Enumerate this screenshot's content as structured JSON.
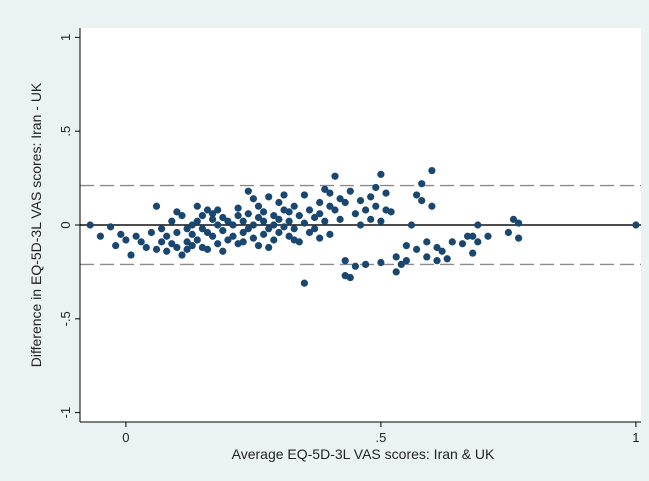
{
  "chart_data": {
    "type": "scatter",
    "xlabel": "Average EQ-5D-3L VAS scores: Iran & UK",
    "ylabel": "Difference in EQ-5D-3L VAS scores: Iran - UK",
    "xlim": [
      -0.09,
      1.01
    ],
    "ylim": [
      -1.05,
      1.05
    ],
    "x_ticks": [
      {
        "value": 0,
        "label": "0"
      },
      {
        "value": 0.5,
        "label": ".5"
      },
      {
        "value": 1,
        "label": "1"
      }
    ],
    "y_ticks": [
      {
        "value": 1,
        "label": "1"
      },
      {
        "value": 0.5,
        "label": ".5"
      },
      {
        "value": 0,
        "label": "0"
      },
      {
        "value": -0.5,
        "label": "-.5"
      },
      {
        "value": -1,
        "label": "-1"
      }
    ],
    "reference_lines": [
      {
        "y": 0,
        "style": "solid"
      },
      {
        "y": 0.21,
        "style": "dashed"
      },
      {
        "y": -0.21,
        "style": "dashed"
      }
    ],
    "grid": false,
    "point_color": "#1a476f",
    "points": [
      [
        -0.07,
        0.0
      ],
      [
        -0.05,
        -0.06
      ],
      [
        -0.03,
        -0.01
      ],
      [
        -0.02,
        -0.11
      ],
      [
        -0.01,
        -0.05
      ],
      [
        0.0,
        -0.08
      ],
      [
        0.01,
        -0.16
      ],
      [
        0.02,
        -0.06
      ],
      [
        0.03,
        -0.09
      ],
      [
        0.04,
        -0.12
      ],
      [
        0.05,
        -0.04
      ],
      [
        0.06,
        -0.13
      ],
      [
        0.06,
        0.1
      ],
      [
        0.07,
        -0.02
      ],
      [
        0.07,
        -0.09
      ],
      [
        0.08,
        -0.14
      ],
      [
        0.08,
        -0.06
      ],
      [
        0.09,
        -0.1
      ],
      [
        0.09,
        0.02
      ],
      [
        0.1,
        0.07
      ],
      [
        0.1,
        -0.04
      ],
      [
        0.1,
        -0.12
      ],
      [
        0.11,
        0.05
      ],
      [
        0.11,
        -0.16
      ],
      [
        0.12,
        -0.02
      ],
      [
        0.12,
        -0.09
      ],
      [
        0.12,
        -0.13
      ],
      [
        0.13,
        0.0
      ],
      [
        0.13,
        -0.05
      ],
      [
        0.13,
        -0.11
      ],
      [
        0.14,
        0.02
      ],
      [
        0.14,
        0.1
      ],
      [
        0.14,
        -0.08
      ],
      [
        0.15,
        0.05
      ],
      [
        0.15,
        -0.02
      ],
      [
        0.15,
        -0.12
      ],
      [
        0.16,
        0.08
      ],
      [
        0.16,
        -0.04
      ],
      [
        0.16,
        -0.13
      ],
      [
        0.17,
        0.03
      ],
      [
        0.17,
        0.06
      ],
      [
        0.17,
        -0.06
      ],
      [
        0.18,
        0.0
      ],
      [
        0.18,
        -0.1
      ],
      [
        0.18,
        0.08
      ],
      [
        0.19,
        -0.14
      ],
      [
        0.19,
        0.04
      ],
      [
        0.19,
        -0.03
      ],
      [
        0.2,
        0.02
      ],
      [
        0.2,
        -0.08
      ],
      [
        0.21,
        0.0
      ],
      [
        0.21,
        -0.06
      ],
      [
        0.22,
        0.05
      ],
      [
        0.22,
        -0.1
      ],
      [
        0.22,
        0.09
      ],
      [
        0.23,
        0.02
      ],
      [
        0.23,
        -0.04
      ],
      [
        0.23,
        -0.09
      ],
      [
        0.24,
        0.18
      ],
      [
        0.24,
        0.06
      ],
      [
        0.24,
        -0.02
      ],
      [
        0.25,
        0.14
      ],
      [
        0.25,
        0.0
      ],
      [
        0.25,
        -0.07
      ],
      [
        0.26,
        0.04
      ],
      [
        0.26,
        -0.11
      ],
      [
        0.26,
        0.1
      ],
      [
        0.27,
        0.02
      ],
      [
        0.27,
        -0.05
      ],
      [
        0.27,
        0.07
      ],
      [
        0.28,
        0.15
      ],
      [
        0.28,
        -0.02
      ],
      [
        0.28,
        -0.12
      ],
      [
        0.29,
        0.05
      ],
      [
        0.29,
        0.0
      ],
      [
        0.29,
        -0.08
      ],
      [
        0.3,
        0.12
      ],
      [
        0.3,
        0.03
      ],
      [
        0.3,
        -0.04
      ],
      [
        0.31,
        0.16
      ],
      [
        0.31,
        0.08
      ],
      [
        0.31,
        -0.01
      ],
      [
        0.32,
        0.07
      ],
      [
        0.32,
        -0.06
      ],
      [
        0.32,
        0.02
      ],
      [
        0.33,
        0.1
      ],
      [
        0.33,
        -0.02
      ],
      [
        0.33,
        -0.08
      ],
      [
        0.34,
        0.05
      ],
      [
        0.34,
        -0.09
      ],
      [
        0.35,
        0.16
      ],
      [
        0.35,
        0.01
      ],
      [
        0.35,
        -0.31
      ],
      [
        0.36,
        0.08
      ],
      [
        0.36,
        -0.04
      ],
      [
        0.37,
        0.04
      ],
      [
        0.37,
        -0.02
      ],
      [
        0.38,
        0.12
      ],
      [
        0.38,
        0.06
      ],
      [
        0.38,
        -0.07
      ],
      [
        0.39,
        0.19
      ],
      [
        0.39,
        0.02
      ],
      [
        0.4,
        0.17
      ],
      [
        0.4,
        0.1
      ],
      [
        0.4,
        -0.05
      ],
      [
        0.41,
        0.26
      ],
      [
        0.41,
        0.08
      ],
      [
        0.42,
        0.14
      ],
      [
        0.42,
        0.03
      ],
      [
        0.43,
        0.12
      ],
      [
        0.43,
        -0.27
      ],
      [
        0.43,
        -0.19
      ],
      [
        0.44,
        0.18
      ],
      [
        0.44,
        -0.28
      ],
      [
        0.45,
        0.06
      ],
      [
        0.45,
        -0.22
      ],
      [
        0.46,
        0.0
      ],
      [
        0.46,
        0.13
      ],
      [
        0.47,
        0.08
      ],
      [
        0.47,
        -0.21
      ],
      [
        0.48,
        0.15
      ],
      [
        0.48,
        0.03
      ],
      [
        0.49,
        0.1
      ],
      [
        0.49,
        0.2
      ],
      [
        0.5,
        0.27
      ],
      [
        0.5,
        0.02
      ],
      [
        0.5,
        -0.2
      ],
      [
        0.51,
        0.17
      ],
      [
        0.51,
        0.08
      ],
      [
        0.52,
        0.07
      ],
      [
        0.53,
        -0.17
      ],
      [
        0.53,
        -0.25
      ],
      [
        0.54,
        -0.21
      ],
      [
        0.55,
        -0.11
      ],
      [
        0.55,
        -0.19
      ],
      [
        0.56,
        0.0
      ],
      [
        0.57,
        0.16
      ],
      [
        0.57,
        -0.13
      ],
      [
        0.58,
        0.22
      ],
      [
        0.58,
        0.13
      ],
      [
        0.59,
        -0.17
      ],
      [
        0.59,
        -0.09
      ],
      [
        0.6,
        0.29
      ],
      [
        0.6,
        0.1
      ],
      [
        0.61,
        -0.19
      ],
      [
        0.61,
        -0.12
      ],
      [
        0.62,
        -0.14
      ],
      [
        0.63,
        -0.18
      ],
      [
        0.64,
        -0.09
      ],
      [
        0.66,
        -0.1
      ],
      [
        0.67,
        -0.06
      ],
      [
        0.68,
        -0.15
      ],
      [
        0.68,
        -0.06
      ],
      [
        0.69,
        -0.09
      ],
      [
        0.69,
        0.0
      ],
      [
        0.71,
        -0.06
      ],
      [
        0.75,
        -0.04
      ],
      [
        0.76,
        0.03
      ],
      [
        0.77,
        0.01
      ],
      [
        0.77,
        -0.07
      ],
      [
        1.0,
        0.0
      ]
    ]
  }
}
